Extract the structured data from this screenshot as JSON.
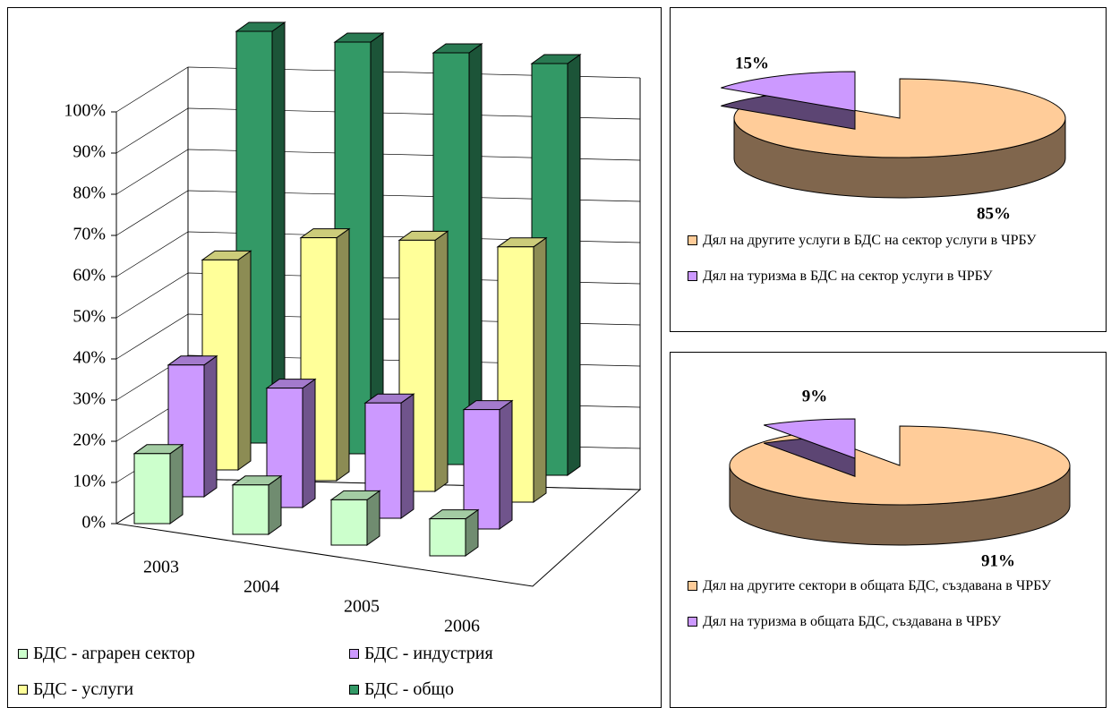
{
  "chart_data": [
    {
      "type": "bar",
      "categories": [
        "2003",
        "2004",
        "2005",
        "2006"
      ],
      "series": [
        {
          "name": "БДС - аграрен сектор",
          "color": "#ccffcc",
          "values": [
            17,
            12,
            11,
            9
          ]
        },
        {
          "name": "БДС - индустрия",
          "color": "#cc99ff",
          "values": [
            32,
            29,
            28,
            29
          ]
        },
        {
          "name": "БДС - услуги",
          "color": "#ffff99",
          "values": [
            51,
            59,
            61,
            62
          ]
        },
        {
          "name": "БДС - общо",
          "color": "#339966",
          "values": [
            100,
            100,
            100,
            100
          ]
        }
      ],
      "ylim": [
        0,
        100
      ],
      "yticks": [
        {
          "value": 0,
          "label": "0%"
        },
        {
          "value": 10,
          "label": "10%"
        },
        {
          "value": 20,
          "label": "20%"
        },
        {
          "value": 30,
          "label": "30%"
        },
        {
          "value": 40,
          "label": "40%"
        },
        {
          "value": 50,
          "label": "50%"
        },
        {
          "value": 60,
          "label": "60%"
        },
        {
          "value": 70,
          "label": "70%"
        },
        {
          "value": 80,
          "label": "80%"
        },
        {
          "value": 90,
          "label": "90%"
        },
        {
          "value": 100,
          "label": "100%"
        }
      ],
      "grid": true
    },
    {
      "type": "pie",
      "categories": [
        "Дял на другите услуги в БДС на сектор услуги в ЧРБУ",
        "Дял на туризма в БДС на сектор услуги в ЧРБУ"
      ],
      "values": [
        85,
        15
      ],
      "value_labels": [
        "85%",
        "15%"
      ],
      "colors": [
        "#ffcc99",
        "#cc99ff"
      ]
    },
    {
      "type": "pie",
      "categories": [
        "Дял на другите сектори в общата БДС, създавана в ЧРБУ",
        "Дял на туризма в общата БДС, създавана в ЧРБУ"
      ],
      "values": [
        91,
        9
      ],
      "value_labels": [
        "91%",
        "9%"
      ],
      "colors": [
        "#ffcc99",
        "#cc99ff"
      ]
    }
  ]
}
